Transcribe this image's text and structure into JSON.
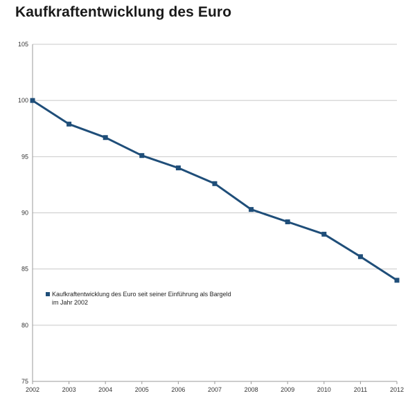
{
  "page": {
    "title": "Kaufkraftentwicklung des Euro"
  },
  "chart_data": {
    "type": "line",
    "title": "Kaufkraftentwicklung des Euro",
    "xlabel": "",
    "ylabel": "",
    "categories": [
      "2002",
      "2003",
      "2004",
      "2005",
      "2006",
      "2007",
      "2008",
      "2009",
      "2010",
      "2011",
      "2012"
    ],
    "series": [
      {
        "name": "Kaufkraftentwicklung des Euro seit seiner Einführung als Bargeld im Jahr 2002",
        "legend_lines": [
          "Kaufkraftentwicklung des Euro seit seiner Einführung als Bargeld",
          "im Jahr 2002"
        ],
        "color": "#1f4e79",
        "values": [
          100,
          97.9,
          96.7,
          95.1,
          94.0,
          92.6,
          90.3,
          89.2,
          88.1,
          86.1,
          84.0
        ]
      }
    ],
    "ylim": [
      75,
      105
    ],
    "yticks": [
      75,
      80,
      85,
      90,
      95,
      100,
      105
    ],
    "grid": true,
    "legend_position": "left-middle",
    "colors": {
      "grid": "#c8c8c8",
      "axis": "#9a9a9a",
      "line": "#1f4e79"
    }
  }
}
